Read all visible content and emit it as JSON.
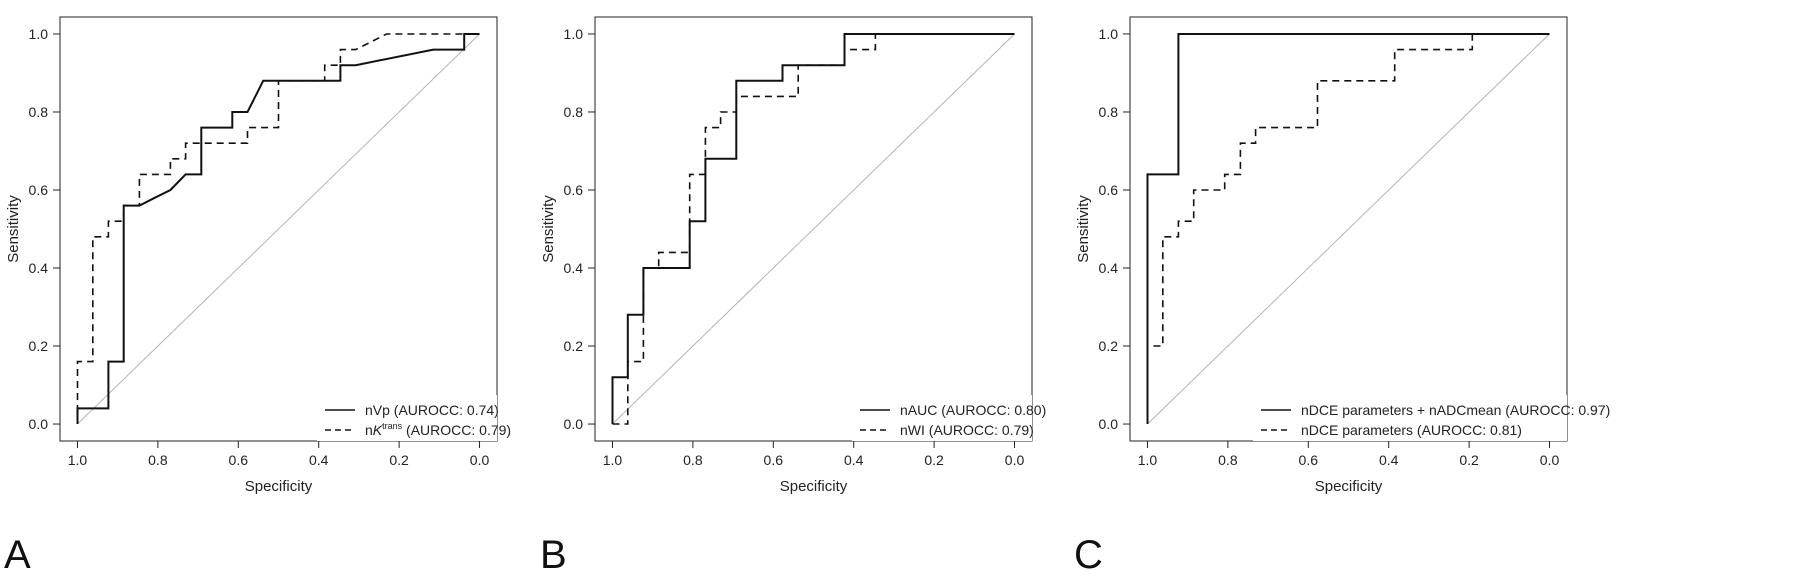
{
  "chart_data": [
    {
      "type": "line",
      "panel_label": "A",
      "xlabel": "Specificity",
      "ylabel": "Sensitivity",
      "xlim": [
        1.0,
        0.0
      ],
      "ylim": [
        0.0,
        1.0
      ],
      "x_ticks": [
        "1.0",
        "0.8",
        "0.6",
        "0.4",
        "0.2",
        "0.0"
      ],
      "y_ticks": [
        "0.0",
        "0.2",
        "0.4",
        "0.6",
        "0.8",
        "1.0"
      ],
      "legend_position": "bottom-right",
      "series": [
        {
          "name": "nVp (AUROCC: 0.74)",
          "style": "solid",
          "points": [
            [
              1.0,
              0.0
            ],
            [
              1.0,
              0.04
            ],
            [
              0.923,
              0.04
            ],
            [
              0.923,
              0.16
            ],
            [
              0.885,
              0.16
            ],
            [
              0.885,
              0.56
            ],
            [
              0.846,
              0.56
            ],
            [
              0.808,
              0.58
            ],
            [
              0.769,
              0.6
            ],
            [
              0.731,
              0.64
            ],
            [
              0.692,
              0.64
            ],
            [
              0.692,
              0.76
            ],
            [
              0.615,
              0.76
            ],
            [
              0.615,
              0.8
            ],
            [
              0.577,
              0.8
            ],
            [
              0.538,
              0.88
            ],
            [
              0.346,
              0.88
            ],
            [
              0.346,
              0.92
            ],
            [
              0.308,
              0.92
            ],
            [
              0.115,
              0.96
            ],
            [
              0.038,
              0.96
            ],
            [
              0.038,
              1.0
            ],
            [
              0.0,
              1.0
            ]
          ]
        },
        {
          "name": "nKtrans (AUROCC: 0.79)",
          "style": "dashed",
          "points": [
            [
              1.0,
              0.0
            ],
            [
              1.0,
              0.16
            ],
            [
              0.962,
              0.16
            ],
            [
              0.962,
              0.48
            ],
            [
              0.923,
              0.48
            ],
            [
              0.923,
              0.52
            ],
            [
              0.885,
              0.52
            ],
            [
              0.885,
              0.56
            ],
            [
              0.846,
              0.56
            ],
            [
              0.846,
              0.64
            ],
            [
              0.769,
              0.64
            ],
            [
              0.769,
              0.68
            ],
            [
              0.731,
              0.68
            ],
            [
              0.731,
              0.72
            ],
            [
              0.577,
              0.72
            ],
            [
              0.577,
              0.76
            ],
            [
              0.5,
              0.76
            ],
            [
              0.5,
              0.88
            ],
            [
              0.385,
              0.88
            ],
            [
              0.385,
              0.92
            ],
            [
              0.346,
              0.92
            ],
            [
              0.346,
              0.96
            ],
            [
              0.308,
              0.96
            ],
            [
              0.231,
              1.0
            ],
            [
              0.0,
              1.0
            ]
          ]
        }
      ],
      "legend_items": [
        {
          "style": "solid",
          "text": "nVp (AUROCC: 0.74)"
        },
        {
          "style": "dashed",
          "text_prefix": "n",
          "text_italic": "K",
          "text_sup": "trans",
          "text_suffix": " (AUROCC: 0.79)"
        }
      ]
    },
    {
      "type": "line",
      "panel_label": "B",
      "xlabel": "Specificity",
      "ylabel": "Sensitivity",
      "xlim": [
        1.0,
        0.0
      ],
      "ylim": [
        0.0,
        1.0
      ],
      "x_ticks": [
        "1.0",
        "0.8",
        "0.6",
        "0.4",
        "0.2",
        "0.0"
      ],
      "y_ticks": [
        "0.0",
        "0.2",
        "0.4",
        "0.6",
        "0.8",
        "1.0"
      ],
      "legend_position": "bottom-right",
      "series": [
        {
          "name": "nAUC (AUROCC: 0.80)",
          "style": "solid",
          "points": [
            [
              1.0,
              0.0
            ],
            [
              1.0,
              0.12
            ],
            [
              0.962,
              0.12
            ],
            [
              0.962,
              0.28
            ],
            [
              0.923,
              0.28
            ],
            [
              0.923,
              0.4
            ],
            [
              0.808,
              0.4
            ],
            [
              0.808,
              0.52
            ],
            [
              0.769,
              0.52
            ],
            [
              0.769,
              0.68
            ],
            [
              0.692,
              0.68
            ],
            [
              0.692,
              0.88
            ],
            [
              0.577,
              0.88
            ],
            [
              0.577,
              0.92
            ],
            [
              0.423,
              0.92
            ],
            [
              0.423,
              1.0
            ],
            [
              0.0,
              1.0
            ]
          ]
        },
        {
          "name": "nWI (AUROCC: 0.79)",
          "style": "dashed",
          "points": [
            [
              1.0,
              0.0
            ],
            [
              0.962,
              0.0
            ],
            [
              0.962,
              0.16
            ],
            [
              0.923,
              0.16
            ],
            [
              0.923,
              0.4
            ],
            [
              0.885,
              0.4
            ],
            [
              0.885,
              0.44
            ],
            [
              0.808,
              0.44
            ],
            [
              0.808,
              0.64
            ],
            [
              0.769,
              0.64
            ],
            [
              0.769,
              0.76
            ],
            [
              0.731,
              0.76
            ],
            [
              0.731,
              0.8
            ],
            [
              0.692,
              0.8
            ],
            [
              0.692,
              0.84
            ],
            [
              0.538,
              0.84
            ],
            [
              0.538,
              0.92
            ],
            [
              0.423,
              0.92
            ],
            [
              0.423,
              0.96
            ],
            [
              0.346,
              0.96
            ],
            [
              0.346,
              1.0
            ],
            [
              0.0,
              1.0
            ]
          ]
        }
      ],
      "legend_items": [
        {
          "style": "solid",
          "text": "nAUC (AUROCC: 0.80)"
        },
        {
          "style": "dashed",
          "text": "nWI (AUROCC: 0.79)"
        }
      ]
    },
    {
      "type": "line",
      "panel_label": "C",
      "xlabel": "Specificity",
      "ylabel": "Sensitivity",
      "xlim": [
        1.0,
        0.0
      ],
      "ylim": [
        0.0,
        1.0
      ],
      "x_ticks": [
        "1.0",
        "0.8",
        "0.6",
        "0.4",
        "0.2",
        "0.0"
      ],
      "y_ticks": [
        "0.0",
        "0.2",
        "0.4",
        "0.6",
        "0.8",
        "1.0"
      ],
      "legend_position": "bottom-right",
      "series": [
        {
          "name": "nDCE parameters + nADCmean (AUROCC: 0.97)",
          "style": "solid",
          "points": [
            [
              1.0,
              0.0
            ],
            [
              1.0,
              0.64
            ],
            [
              0.923,
              0.64
            ],
            [
              0.923,
              1.0
            ],
            [
              0.0,
              1.0
            ]
          ]
        },
        {
          "name": "nDCE parameters (AUROCC: 0.81)",
          "style": "dashed",
          "points": [
            [
              1.0,
              0.0
            ],
            [
              1.0,
              0.2
            ],
            [
              0.962,
              0.2
            ],
            [
              0.962,
              0.48
            ],
            [
              0.923,
              0.48
            ],
            [
              0.923,
              0.52
            ],
            [
              0.885,
              0.52
            ],
            [
              0.885,
              0.6
            ],
            [
              0.808,
              0.6
            ],
            [
              0.808,
              0.64
            ],
            [
              0.769,
              0.64
            ],
            [
              0.769,
              0.72
            ],
            [
              0.731,
              0.72
            ],
            [
              0.731,
              0.76
            ],
            [
              0.577,
              0.76
            ],
            [
              0.577,
              0.88
            ],
            [
              0.385,
              0.88
            ],
            [
              0.385,
              0.96
            ],
            [
              0.192,
              0.96
            ],
            [
              0.192,
              1.0
            ],
            [
              0.0,
              1.0
            ]
          ]
        }
      ],
      "legend_items": [
        {
          "style": "solid",
          "text": "nDCE parameters + nADCmean (AUROCC: 0.97)"
        },
        {
          "style": "dashed",
          "text": "nDCE parameters (AUROCC: 0.81)"
        }
      ]
    }
  ]
}
